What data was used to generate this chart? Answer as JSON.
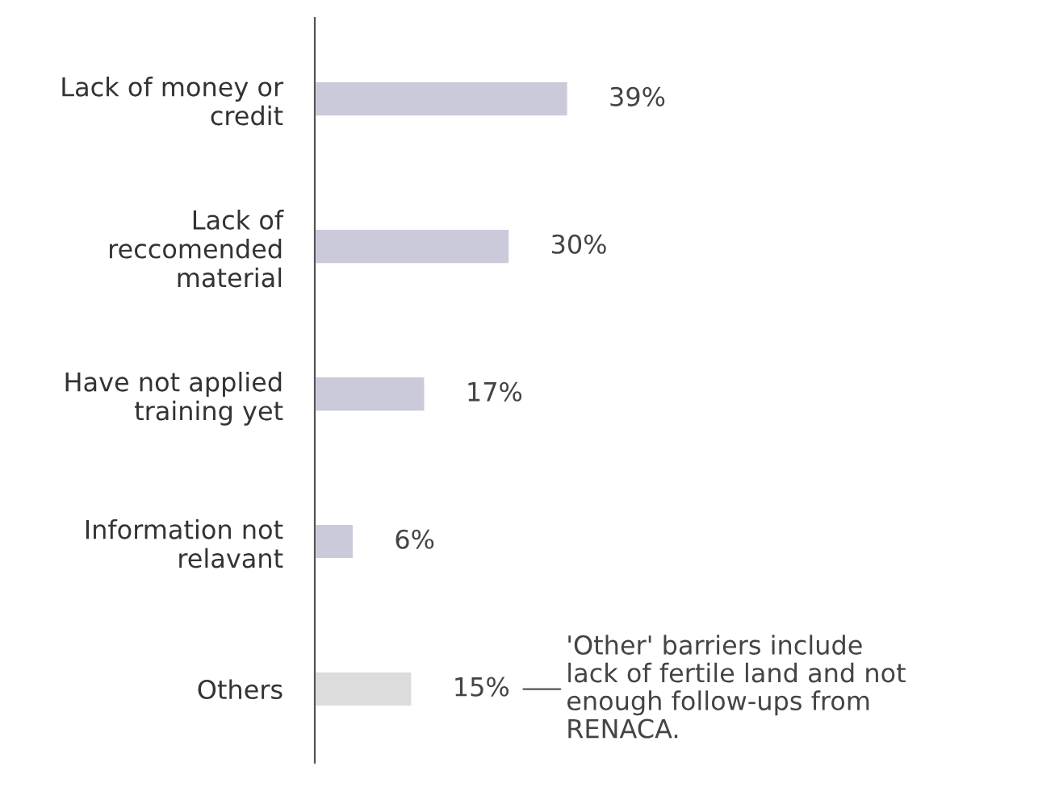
{
  "chart_data": {
    "type": "bar",
    "orientation": "horizontal",
    "categories": [
      "Lack of money or\ncredit",
      "Lack of\nreccomended\nmaterial",
      "Have not applied\ntraining yet",
      "Information not\nrelavant",
      "Others"
    ],
    "values": [
      39,
      30,
      17,
      6,
      15
    ],
    "colors": [
      "#c8c7dd",
      "#c8c7dd",
      "#c8c7dd",
      "#c8c7dd",
      "#dcdcdc"
    ],
    "value_labels": [
      "39%",
      "30%",
      "17%",
      "6%",
      "15%"
    ],
    "annotations": [
      "'Other' barriers include\nlack of fertile land and not\nenough follow-ups from\nRENACA."
    ],
    "tick_labels": "y",
    "grid": false,
    "legend": false
  }
}
